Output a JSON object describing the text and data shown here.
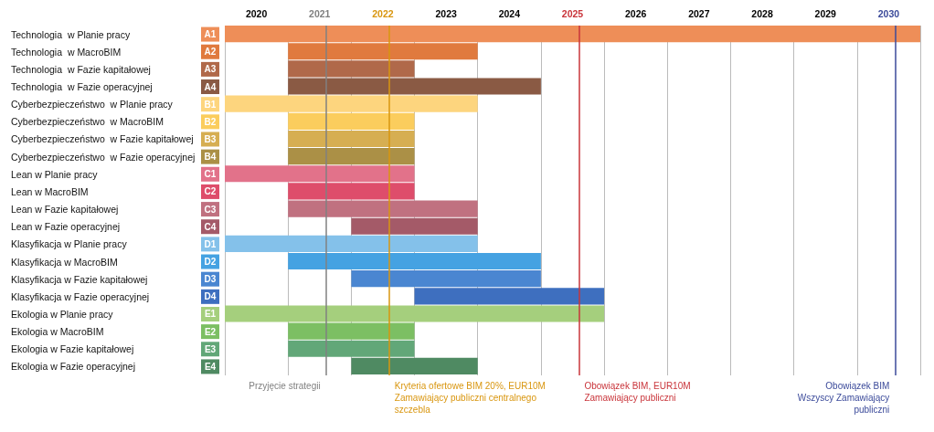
{
  "chart_data": {
    "type": "bar",
    "orientation": "horizontal",
    "categories": [
      "Technologia  w Planie pracy",
      "Technologia  w MacroBIM",
      "Technologia  w Fazie kapitałowej",
      "Technologia  w Fazie operacyjnej",
      "Cyberbezpieczeństwo  w Planie pracy",
      "Cyberbezpieczeństwo  w MacroBIM",
      "Cyberbezpieczeństwo  w Fazie kapitałowej",
      "Cyberbezpieczeństwo  w Fazie operacyjnej",
      "Lean w Planie pracy",
      "Lean w MacroBIM",
      "Lean w Fazie kapitałowej",
      "Lean w Fazie operacyjnej",
      "Klasyfikacja w Planie pracy",
      "Klasyfikacja w MacroBIM",
      "Klasyfikacja w Fazie kapitałowej",
      "Klasyfikacja w Fazie operacyjnej",
      "Ekologia w Planie pracy",
      "Ekologia w MacroBIM",
      "Ekologia w Fazie kapitałowej",
      "Ekologia w Fazie operacyjnej"
    ],
    "base": [
      2020,
      2021,
      2021,
      2021,
      2020,
      2021,
      2021,
      2021,
      2020,
      2021,
      2021,
      2022,
      2020,
      2021,
      2022,
      2023,
      2020,
      2021,
      2021,
      2022
    ],
    "values": [
      11,
      3,
      2,
      4,
      4,
      2,
      2,
      2,
      3,
      2,
      3,
      2,
      4,
      4,
      3,
      3,
      6,
      2,
      2,
      2
    ],
    "colors": [
      "#ee8e58",
      "#e07a3e",
      "#b0694a",
      "#8a5a44",
      "#fdd57e",
      "#fbcd5d",
      "#d6ae52",
      "#ab9046",
      "#e2728a",
      "#de4d6b",
      "#c07180",
      "#a45a68",
      "#84c1ea",
      "#45a2e2",
      "#4a86d1",
      "#3e6fbf",
      "#a5cf7d",
      "#7cbf63",
      "#62a778",
      "#4f8a62"
    ],
    "annotations": [
      "A1",
      "A2",
      "A3",
      "A4",
      "B1",
      "B2",
      "B3",
      "B4",
      "C1",
      "C2",
      "C3",
      "C4",
      "D1",
      "D2",
      "D3",
      "D4",
      "E1",
      "E2",
      "E3",
      "E4"
    ],
    "xlim": [
      2020,
      2031
    ],
    "xticks": [
      {
        "value": 2020,
        "label": null
      },
      {
        "value": 2020.5,
        "label": "2020"
      },
      {
        "value": 2021,
        "label": null
      },
      {
        "value": 2021.5,
        "label": "2021"
      },
      {
        "value": 2022,
        "label": null
      },
      {
        "value": 2022.5,
        "label": "2022"
      },
      {
        "value": 2023,
        "label": null
      },
      {
        "value": 2023.5,
        "label": "2023"
      },
      {
        "value": 2024,
        "label": null
      },
      {
        "value": 2024.5,
        "label": "2024"
      },
      {
        "value": 2025,
        "label": null
      },
      {
        "value": 2025.5,
        "label": "2025"
      },
      {
        "value": 2026,
        "label": null
      },
      {
        "value": 2026.5,
        "label": "2026"
      },
      {
        "value": 2027,
        "label": null
      },
      {
        "value": 2027.5,
        "label": "2027"
      },
      {
        "value": 2028,
        "label": null
      },
      {
        "value": 2028.5,
        "label": "2028"
      },
      {
        "value": 2029,
        "label": null
      },
      {
        "value": 2029.5,
        "label": "2029"
      },
      {
        "value": 2030,
        "label": null
      },
      {
        "value": 2030.5,
        "label": "2030"
      },
      {
        "value": 2031,
        "label": null
      }
    ],
    "ref_lines": [
      {
        "axis": "x",
        "value": 2021.6,
        "label": "Przyjęcie strategii",
        "color": "#808080"
      },
      {
        "axis": "x",
        "value": 2022.6,
        "label": "Kryteria ofertowe BIM 20%, EUR10M\nZamawiający publiczni centralnego\nszczebla",
        "color": "#d9960f"
      },
      {
        "axis": "x",
        "value": 2025.6,
        "label": "Obowiązek BIM, EUR10M\nZamawiający publiczni",
        "color": "#c9343a"
      },
      {
        "axis": "x",
        "value": 2030.6,
        "label": "Obowiązek BIM\nWszyscy Zamawiający\npubliczni",
        "color": "#3b4a9a"
      }
    ],
    "grid": "x"
  }
}
